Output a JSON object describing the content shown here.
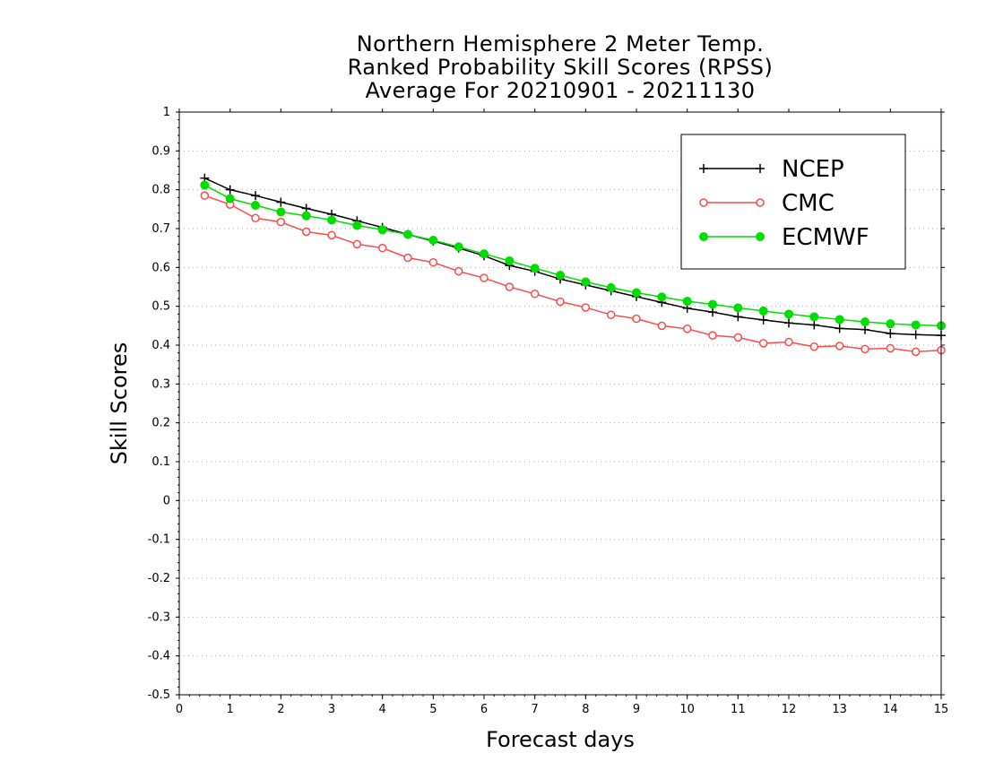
{
  "chart_data": {
    "type": "line",
    "title_lines": [
      "Northern Hemisphere 2 Meter Temp.",
      "Ranked Probability Skill Scores (RPSS)",
      "Average For 20210901 - 20211130"
    ],
    "xlabel": "Forecast days",
    "ylabel": "Skill Scores",
    "xlim": [
      0,
      15
    ],
    "ylim": [
      -0.5,
      1
    ],
    "xticks": [
      "0",
      "1",
      "2",
      "3",
      "4",
      "5",
      "6",
      "7",
      "8",
      "9",
      "10",
      "11",
      "12",
      "13",
      "14",
      "15"
    ],
    "yticks": [
      "-0.5",
      "-0.4",
      "-0.3",
      "-0.2",
      "-0.1",
      "0",
      "0.1",
      "0.2",
      "0.3",
      "0.4",
      "0.5",
      "0.6",
      "0.7",
      "0.8",
      "0.9",
      "1"
    ],
    "grid": true,
    "legend_position": "top-right",
    "x": [
      0.5,
      1,
      1.5,
      2,
      2.5,
      3,
      3.5,
      4,
      4.5,
      5,
      5.5,
      6,
      6.5,
      7,
      7.5,
      8,
      8.5,
      9,
      9.5,
      10,
      10.5,
      11,
      11.5,
      12,
      12.5,
      13,
      13.5,
      14,
      14.5,
      15
    ],
    "series": [
      {
        "name": "NCEP",
        "color": "#000000",
        "marker": "plus",
        "values": [
          0.83,
          0.8,
          0.785,
          0.768,
          0.752,
          0.737,
          0.72,
          0.703,
          0.685,
          0.668,
          0.65,
          0.63,
          0.605,
          0.59,
          0.57,
          0.555,
          0.54,
          0.525,
          0.51,
          0.495,
          0.485,
          0.473,
          0.465,
          0.457,
          0.452,
          0.443,
          0.44,
          0.43,
          0.427,
          0.425
        ]
      },
      {
        "name": "CMC",
        "color": "#ff4a4a",
        "marker": "open-circle",
        "values": [
          0.785,
          0.762,
          0.727,
          0.717,
          0.692,
          0.683,
          0.66,
          0.65,
          0.625,
          0.613,
          0.59,
          0.573,
          0.55,
          0.532,
          0.512,
          0.497,
          0.478,
          0.468,
          0.45,
          0.442,
          0.425,
          0.42,
          0.405,
          0.408,
          0.396,
          0.398,
          0.39,
          0.392,
          0.383,
          0.387
        ]
      },
      {
        "name": "ECMWF",
        "color": "#00dd00",
        "marker": "filled-circle",
        "values": [
          0.812,
          0.777,
          0.76,
          0.743,
          0.733,
          0.722,
          0.708,
          0.697,
          0.685,
          0.67,
          0.653,
          0.635,
          0.617,
          0.598,
          0.58,
          0.563,
          0.548,
          0.535,
          0.524,
          0.513,
          0.505,
          0.496,
          0.488,
          0.48,
          0.473,
          0.466,
          0.46,
          0.455,
          0.452,
          0.45
        ]
      }
    ]
  }
}
